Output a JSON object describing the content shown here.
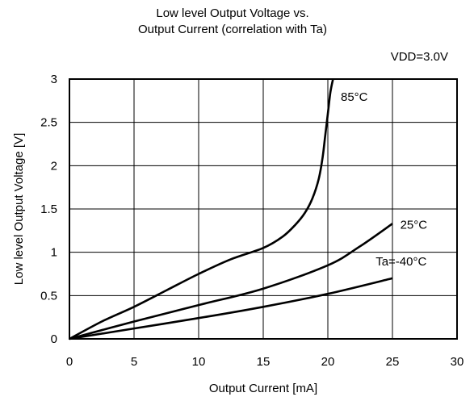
{
  "chart_data": {
    "type": "line",
    "title_lines": [
      "Low level Output Voltage vs.",
      "Output Current (correlation with Ta)"
    ],
    "condition": "VDD=3.0V",
    "xlabel": "Output Current [mA]",
    "ylabel": "Low level Output Voltage [V]",
    "xlim": [
      0,
      30
    ],
    "ylim": [
      0,
      3
    ],
    "xticks": [
      0,
      5,
      10,
      15,
      20,
      25,
      30
    ],
    "yticks": [
      0,
      0.5,
      1,
      1.5,
      2,
      2.5,
      3
    ],
    "ytick_labels": [
      "0",
      "0.5",
      "1",
      "1.5",
      "2",
      "2.5",
      "3"
    ],
    "grid": true,
    "series": [
      {
        "name": "85°C",
        "x": [
          0,
          2.5,
          5,
          7.5,
          10,
          12.5,
          15,
          16.5,
          17.5,
          18.2,
          18.8,
          19.3,
          19.6,
          19.8,
          20.0,
          20.2,
          20.4
        ],
        "y": [
          0,
          0.2,
          0.37,
          0.56,
          0.75,
          0.92,
          1.05,
          1.18,
          1.32,
          1.45,
          1.62,
          1.85,
          2.1,
          2.35,
          2.6,
          2.85,
          3.0
        ]
      },
      {
        "name": "25°C",
        "x": [
          0,
          5,
          10,
          15,
          20,
          22.5,
          25
        ],
        "y": [
          0,
          0.2,
          0.39,
          0.58,
          0.85,
          1.07,
          1.33
        ]
      },
      {
        "name": "Ta=-40°C",
        "x": [
          0,
          5,
          10,
          15,
          20,
          25
        ],
        "y": [
          0,
          0.12,
          0.24,
          0.37,
          0.52,
          0.7
        ]
      }
    ]
  }
}
